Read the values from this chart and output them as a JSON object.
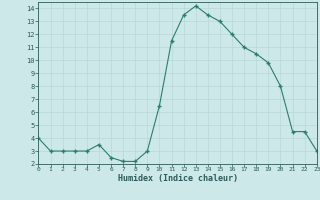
{
  "x": [
    0,
    1,
    2,
    3,
    4,
    5,
    6,
    7,
    8,
    9,
    10,
    11,
    12,
    13,
    14,
    15,
    16,
    17,
    18,
    19,
    20,
    21,
    22,
    23
  ],
  "y": [
    4.0,
    3.0,
    3.0,
    3.0,
    3.0,
    3.5,
    2.5,
    2.2,
    2.2,
    3.0,
    6.5,
    11.5,
    13.5,
    14.2,
    13.5,
    13.0,
    12.0,
    11.0,
    10.5,
    9.8,
    8.0,
    4.5,
    4.5,
    3.0
  ],
  "xlabel": "Humidex (Indice chaleur)",
  "xlim": [
    0,
    23
  ],
  "ylim": [
    2,
    14.5
  ],
  "yticks": [
    2,
    3,
    4,
    5,
    6,
    7,
    8,
    9,
    10,
    11,
    12,
    13,
    14
  ],
  "xticks": [
    0,
    1,
    2,
    3,
    4,
    5,
    6,
    7,
    8,
    9,
    10,
    11,
    12,
    13,
    14,
    15,
    16,
    17,
    18,
    19,
    20,
    21,
    22,
    23
  ],
  "line_color": "#2d7d6e",
  "marker": "+",
  "bg_color": "#cde8e8",
  "grid_color": "#b8d8d8",
  "tick_color": "#2d5a5a",
  "label_color": "#2d5a5a"
}
